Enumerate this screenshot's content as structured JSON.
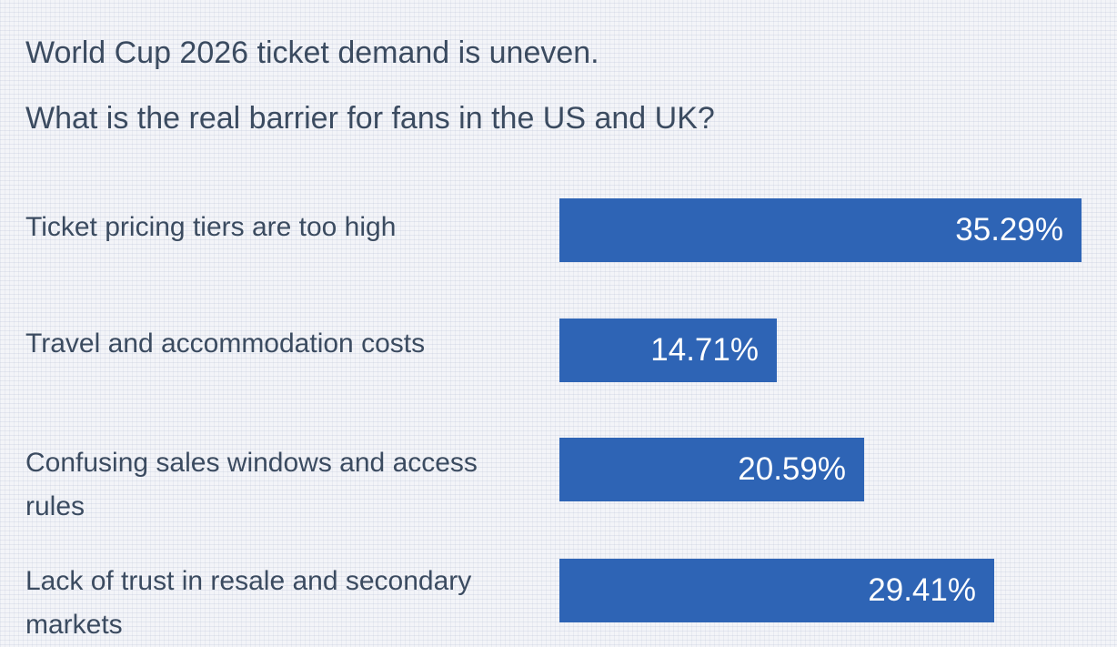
{
  "chart_data": {
    "type": "bar",
    "orientation": "horizontal",
    "title": "World Cup 2026 ticket demand is uneven.",
    "subtitle": "What is the real barrier for fans in the US and UK?",
    "categories": [
      "Ticket pricing tiers are too high",
      "Travel and accommodation costs",
      "Confusing sales windows and access rules",
      "Lack of trust in resale and secondary markets"
    ],
    "values": [
      35.29,
      14.71,
      20.59,
      29.41
    ],
    "value_labels": [
      "35.29%",
      "14.71%",
      "20.59%",
      "29.41%"
    ],
    "xlim": [
      0,
      35.29
    ],
    "axes_visible": false,
    "grid": false,
    "legend": "none"
  },
  "colors": {
    "bar": "#2e64b5",
    "text": "#3b4b60",
    "value_text": "#ffffff",
    "background": "#f3f4f8"
  }
}
